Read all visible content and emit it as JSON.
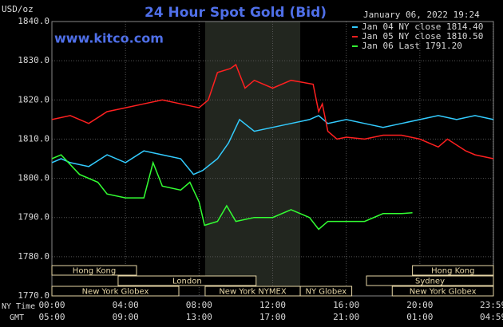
{
  "chart_data": {
    "type": "line",
    "title": "24 Hour Spot Gold (Bid)",
    "subtitle": "www.kitco.com",
    "timestamp": "January 06, 2022 19:24",
    "y_label": "USD/oz",
    "x_label": "NY Time",
    "x2_label": "GMT",
    "xlim": [
      0,
      24
    ],
    "xticks": [
      {
        "value": 0,
        "label": "00:00"
      },
      {
        "value": 4,
        "label": "04:00"
      },
      {
        "value": 8,
        "label": "08:00"
      },
      {
        "value": 12,
        "label": "12:00"
      },
      {
        "value": 16,
        "label": "16:00"
      },
      {
        "value": 20,
        "label": "20:00"
      },
      {
        "value": 23.983,
        "label": "23:59"
      }
    ],
    "x2ticks": [
      "05:00",
      "09:00",
      "13:00",
      "17:00",
      "21:00",
      "01:00",
      "04:59"
    ],
    "ylim": [
      1770,
      1840
    ],
    "yticks": [
      {
        "value": 1770,
        "label": "1770.0"
      },
      {
        "value": 1780,
        "label": "1780.0"
      },
      {
        "value": 1790,
        "label": "1790.0"
      },
      {
        "value": 1800,
        "label": "1800.0"
      },
      {
        "value": 1810,
        "label": "1810.0"
      },
      {
        "value": 1820,
        "label": "1820.0"
      },
      {
        "value": 1830,
        "label": "1830.0"
      },
      {
        "value": 1840,
        "label": "1840.0"
      }
    ],
    "grid": true,
    "sessions": [
      {
        "name": "Hong Kong",
        "start": 0,
        "end": 4.6,
        "row": 0
      },
      {
        "name": "London",
        "start": 3.6,
        "end": 11.1,
        "row": 1
      },
      {
        "name": "New York Globex",
        "start": 0,
        "end": 6.9,
        "row": 2
      },
      {
        "name": "New York NYMEX",
        "start": 8.33,
        "end": 13.5,
        "row": 2,
        "shaded": true
      },
      {
        "name": "NY Globex",
        "start": 13.5,
        "end": 16.3,
        "row": 2
      },
      {
        "name": "Hong Kong",
        "start": 19.6,
        "end": 24,
        "row": 0
      },
      {
        "name": "Sydney",
        "start": 17.1,
        "end": 24,
        "row": 1
      },
      {
        "name": "New York Globex",
        "start": 18.5,
        "end": 24,
        "row": 2
      }
    ],
    "series": [
      {
        "name": "Jan 04 NY close 1814.40",
        "color": "#33ccff",
        "x": [
          0,
          0.5,
          1,
          2,
          3,
          4,
          5,
          6,
          7,
          7.7,
          8.2,
          9,
          9.6,
          10.2,
          11,
          12,
          13,
          14,
          14.5,
          15,
          16,
          17,
          18,
          19,
          20,
          21,
          22,
          23,
          24
        ],
        "values": [
          1804,
          1805,
          1804,
          1803,
          1806,
          1804,
          1807,
          1806,
          1805,
          1801,
          1802,
          1805,
          1809,
          1815,
          1812,
          1813,
          1814,
          1815,
          1816,
          1814,
          1815,
          1814,
          1813,
          1814,
          1815,
          1816,
          1815,
          1816,
          1815
        ]
      },
      {
        "name": "Jan 05 NY close 1810.50",
        "color": "#ff2020",
        "x": [
          0,
          1,
          2,
          3,
          4,
          5,
          6,
          7,
          8,
          8.5,
          9,
          9.7,
          10,
          10.5,
          11,
          12,
          13,
          14.2,
          14.5,
          14.7,
          15,
          15.5,
          16,
          17,
          18,
          19,
          20,
          21,
          21.5,
          22.5,
          23,
          24
        ],
        "values": [
          1815,
          1816,
          1814,
          1817,
          1818,
          1819,
          1820,
          1819,
          1818,
          1820,
          1827,
          1828,
          1829,
          1823,
          1825,
          1823,
          1825,
          1824,
          1817,
          1819,
          1812,
          1810,
          1810.5,
          1810,
          1811,
          1811,
          1810,
          1808,
          1810,
          1807,
          1806,
          1805
        ]
      },
      {
        "name": "Jan 06 Last 1791.20",
        "color": "#33ff33",
        "x": [
          0,
          0.5,
          1.5,
          2.5,
          3,
          4,
          5,
          5.5,
          6,
          7,
          7.5,
          8,
          8.3,
          9,
          9.5,
          10,
          11,
          12,
          13,
          14,
          14.5,
          15,
          16,
          17,
          18,
          19,
          19.6
        ],
        "values": [
          1805,
          1806,
          1801,
          1799,
          1796,
          1795,
          1795,
          1804,
          1798,
          1797,
          1799,
          1794,
          1788,
          1789,
          1793,
          1789,
          1790,
          1790,
          1792,
          1790,
          1787,
          1789,
          1789,
          1789,
          1791,
          1791,
          1791.2
        ]
      }
    ]
  }
}
